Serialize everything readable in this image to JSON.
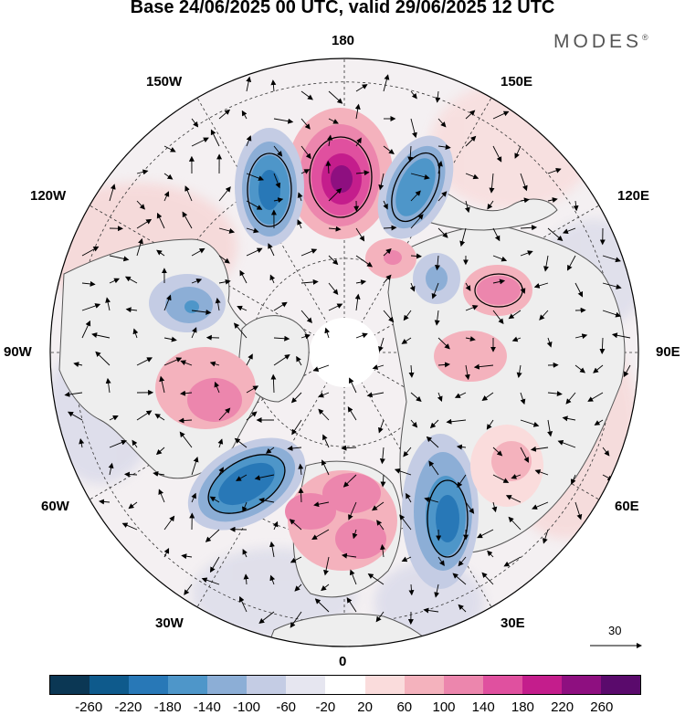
{
  "title": "Base 24/06/2025 00 UTC, valid 29/06/2025 12 UTC",
  "brand": "MODES",
  "brand_mark": "®",
  "longitude_labels": {
    "lon_180": "180",
    "lon_150w": "150W",
    "lon_150e": "150E",
    "lon_120w": "120W",
    "lon_120e": "120E",
    "lon_90w": "90W",
    "lon_90e": "90E",
    "lon_60w": "60W",
    "lon_60e": "60E",
    "lon_30w": "30W",
    "lon_30e": "30E",
    "lon_0": "0"
  },
  "reference_vector": "30",
  "colorbar": {
    "ticks": [
      "-260",
      "-220",
      "-180",
      "-140",
      "-100",
      "-60",
      "-20",
      "20",
      "60",
      "100",
      "140",
      "180",
      "220",
      "260"
    ],
    "colors": [
      "#0b3754",
      "#0e5a8c",
      "#2878b7",
      "#4e96c9",
      "#8caed6",
      "#c4cce4",
      "#e6e6f0",
      "#ffffff",
      "#fadcdc",
      "#f4b2bd",
      "#ec86ad",
      "#e0509f",
      "#c41d8c",
      "#8e0f80",
      "#5a0a6c"
    ]
  },
  "map": {
    "projection": "north polar stereographic",
    "field": "anomaly shading with wind vectors",
    "colors": {
      "land_fill": "#f0f0f0",
      "coastline": "#555555",
      "graticule": "#333333"
    },
    "anomaly_centers": [
      {
        "lon": -170,
        "value": -170,
        "label": "negative"
      },
      {
        "lon": 175,
        "value": 240,
        "label": "positive"
      },
      {
        "lon": 150,
        "value": -160,
        "label": "negative"
      },
      {
        "lon": -125,
        "value": -100,
        "label": "negative"
      },
      {
        "lon": 125,
        "value": 120,
        "label": "positive"
      },
      {
        "lon": -75,
        "value": 90,
        "label": "positive"
      },
      {
        "lon": -45,
        "value": -180,
        "label": "negative"
      },
      {
        "lon": 5,
        "value": 150,
        "label": "positive"
      },
      {
        "lon": 35,
        "value": -200,
        "label": "negative"
      },
      {
        "lon": 100,
        "value": 60,
        "label": "positive"
      },
      {
        "lon": 60,
        "value": 50,
        "label": "positive"
      }
    ]
  }
}
